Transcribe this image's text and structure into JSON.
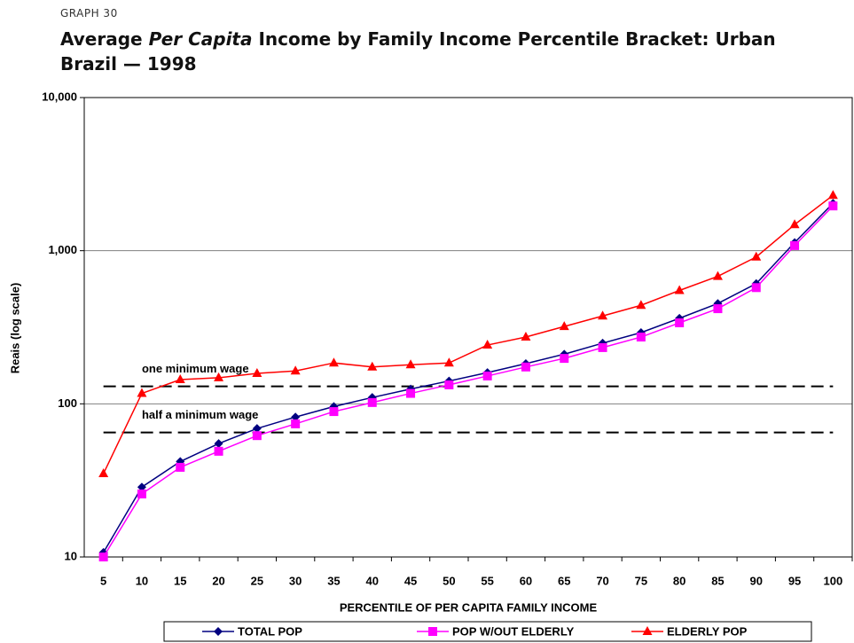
{
  "chart_data": {
    "type": "line",
    "kicker": "GRAPH 30",
    "title": [
      "Average",
      "Per Capita",
      "Income by Family Income Percentile Bracket: Urban Brazil — 1998"
    ],
    "x_label": "PERCENTILE OF PER CAPITA FAMILY INCOME",
    "y_label": "Reais (log scale)",
    "log_scale": true,
    "grid": true,
    "legend": "bottom",
    "categories": [
      5,
      10,
      15,
      20,
      25,
      30,
      35,
      40,
      45,
      50,
      55,
      60,
      65,
      70,
      75,
      80,
      85,
      90,
      95,
      100
    ],
    "ylim": [
      10,
      10000
    ],
    "yticks": [
      10,
      100,
      {
        "value": 1000,
        "label": "1,000"
      },
      {
        "value": 10000,
        "label": "10,000"
      }
    ],
    "series": [
      {
        "name": "TOTAL POP",
        "color": "#000080",
        "marker": "diamond",
        "values": [
          10.7,
          28.6,
          42,
          55,
          69,
          82,
          96,
          110,
          125,
          141,
          160,
          183,
          211,
          249,
          292,
          362,
          452,
          610,
          1130,
          2040
        ]
      },
      {
        "name": "POP W/OUT ELDERLY",
        "color": "#ff00ff",
        "marker": "square",
        "values": [
          10,
          25.8,
          38.5,
          49,
          62,
          74,
          89,
          102,
          117,
          133,
          152,
          174,
          198,
          233,
          273,
          338,
          418,
          574,
          1080,
          1960
        ]
      },
      {
        "name": "ELDERLY POP",
        "color": "#ff0000",
        "marker": "triangle",
        "values": [
          35,
          117,
          144,
          148,
          158,
          164,
          185,
          174,
          180,
          185,
          242,
          273,
          320,
          375,
          440,
          550,
          680,
          910,
          1480,
          2300
        ]
      }
    ],
    "reference_lines": [
      {
        "label": "one minimum wage",
        "value": 130
      },
      {
        "label": "half a minimum wage",
        "value": 65
      }
    ]
  }
}
